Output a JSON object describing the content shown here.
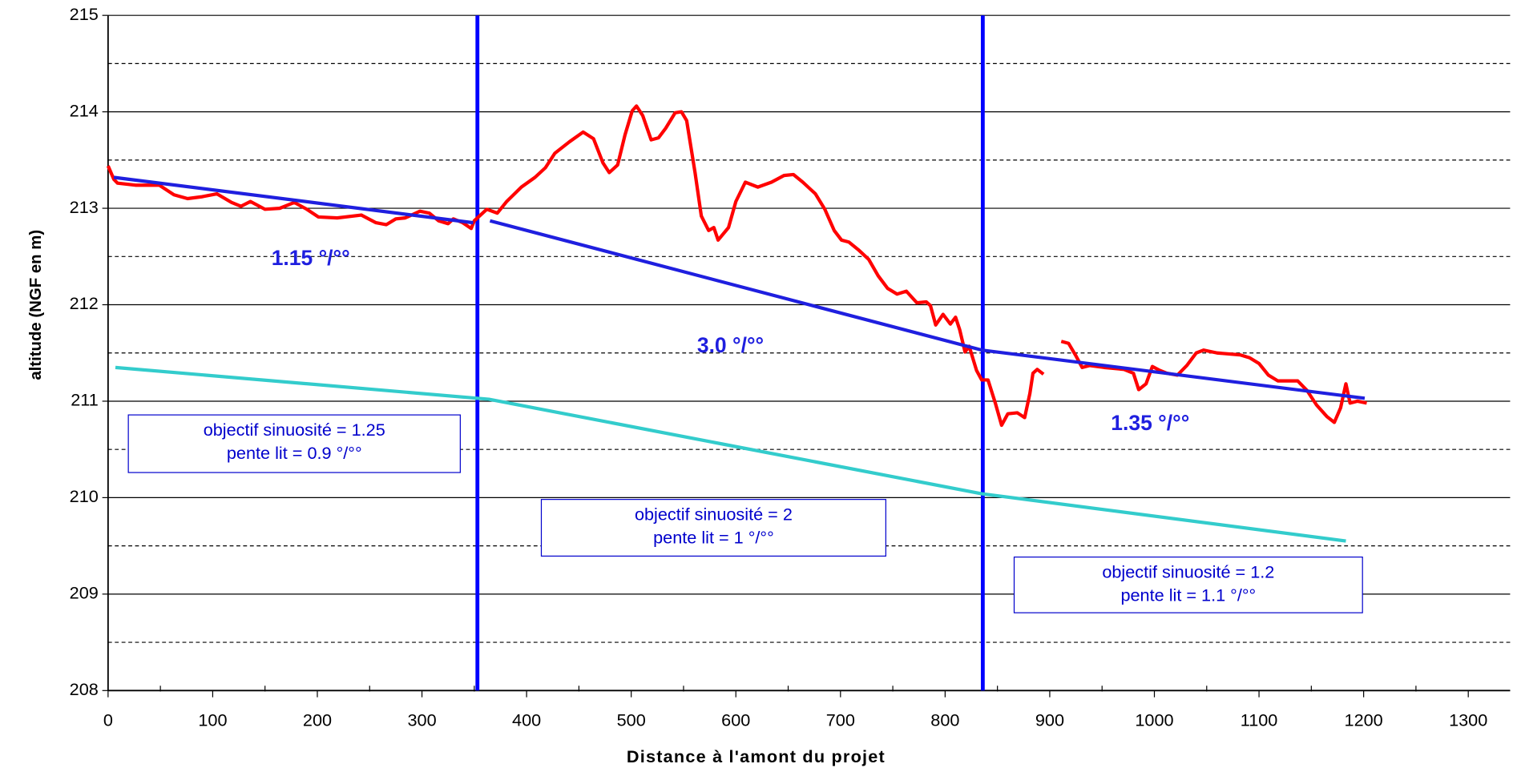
{
  "chart_data": {
    "type": "line",
    "xlabel": "Distance à l'amont du projet",
    "ylabel": "altitude (NGF en m)",
    "xlim": [
      0,
      1340
    ],
    "ylim": [
      208,
      215
    ],
    "xticks": [
      0,
      100,
      200,
      300,
      400,
      500,
      600,
      700,
      800,
      900,
      1000,
      1100,
      1200,
      1300
    ],
    "xminorticks": [
      50,
      150,
      250,
      350,
      450,
      550,
      650,
      750,
      850,
      950,
      1050,
      1150,
      1250
    ],
    "yticks": [
      208,
      209,
      210,
      211,
      212,
      213,
      214,
      215
    ],
    "yminorgrid": [
      208.5,
      209.5,
      210.5,
      211.5,
      212.5,
      213.5,
      214.5
    ],
    "grid": true,
    "vlines": {
      "color": "#0000ff",
      "values": [
        353,
        836
      ]
    },
    "series": [
      {
        "color": "#ff0000",
        "x": [
          0,
          5.5,
          9,
          26,
          49,
          63,
          76,
          90,
          104,
          118,
          127,
          136,
          150,
          164,
          178,
          190,
          201,
          219,
          242,
          256,
          266,
          275,
          284,
          298,
          307,
          316,
          325,
          330,
          339,
          347,
          350,
          362,
          372,
          381,
          395,
          408,
          418,
          427,
          441,
          454,
          464,
          473,
          479,
          487,
          494,
          501,
          505,
          511,
          519,
          526,
          533,
          542,
          548,
          553,
          561,
          567,
          574,
          579,
          583,
          593,
          600,
          609,
          621,
          634,
          646,
          655,
          664,
          676,
          685,
          694,
          701,
          708,
          717,
          727,
          736,
          745,
          754,
          763,
          773,
          782,
          786,
          791,
          798,
          805,
          810,
          814,
          819,
          823,
          830,
          835,
          841,
          848,
          854,
          860,
          869,
          876,
          881,
          884,
          888,
          894,
          900,
          911,
          918,
          925,
          931,
          938,
          952,
          971,
          980,
          985,
          992,
          998,
          1005,
          1012,
          1022,
          1031,
          1040,
          1047,
          1060,
          1082,
          1091,
          1100,
          1109,
          1118,
          1137,
          1146,
          1155,
          1165,
          1172,
          1178,
          1183,
          1187,
          1194,
          1203
        ],
        "values": [
          213.44,
          213.3,
          213.26,
          213.24,
          213.24,
          213.14,
          213.1,
          213.12,
          213.15,
          213.06,
          213.02,
          213.07,
          212.99,
          213.0,
          213.06,
          212.99,
          212.91,
          212.9,
          212.93,
          212.85,
          212.83,
          212.89,
          212.9,
          212.97,
          212.95,
          212.87,
          212.84,
          212.89,
          212.85,
          212.79,
          212.87,
          212.99,
          212.95,
          213.07,
          213.22,
          213.32,
          213.42,
          213.57,
          213.69,
          213.79,
          213.72,
          213.47,
          213.37,
          213.45,
          213.76,
          214.01,
          214.06,
          213.96,
          213.71,
          213.73,
          213.83,
          213.99,
          214.0,
          213.91,
          213.37,
          212.92,
          212.77,
          212.8,
          212.67,
          212.8,
          213.07,
          213.27,
          213.22,
          213.27,
          213.34,
          213.35,
          213.27,
          213.15,
          212.99,
          212.77,
          212.67,
          212.65,
          212.57,
          212.47,
          212.3,
          212.17,
          212.11,
          212.14,
          212.02,
          212.03,
          211.99,
          211.79,
          211.9,
          211.8,
          211.87,
          211.74,
          211.51,
          211.57,
          211.32,
          211.22,
          211.22,
          210.98,
          210.75,
          210.87,
          210.88,
          210.83,
          211.08,
          211.29,
          211.33,
          211.28,
          null,
          211.62,
          211.6,
          211.47,
          211.35,
          211.37,
          211.35,
          211.33,
          211.29,
          211.12,
          211.18,
          211.36,
          211.32,
          211.29,
          211.27,
          211.37,
          211.5,
          211.53,
          211.5,
          211.48,
          211.45,
          211.39,
          211.27,
          211.21,
          211.21,
          211.11,
          210.96,
          210.84,
          210.78,
          210.93,
          211.18,
          210.98,
          211.0,
          210.98
        ]
      },
      {
        "color": "#1f1fdf",
        "x": [
          5.5,
          349
        ],
        "values": [
          213.32,
          212.85
        ]
      },
      {
        "color": "#1f1fdf",
        "x": [
          365,
          835
        ],
        "values": [
          212.87,
          211.53
        ]
      },
      {
        "color": "#1f1fdf",
        "x": [
          835,
          1201
        ],
        "values": [
          211.53,
          211.03
        ]
      },
      {
        "color": "#33cccc",
        "x": [
          7,
          364,
          835,
          1183
        ],
        "values": [
          211.35,
          211.02,
          210.04,
          209.55
        ]
      }
    ],
    "annotations": [
      "1.15 °/°°",
      "3.0 °/°°",
      "1.35 °/°°"
    ],
    "boxes": [
      {
        "lines": [
          "objectif sinuosité = 1.25",
          "pente lit = 0.9 °/°°"
        ]
      },
      {
        "lines": [
          "objectif sinuosité = 2",
          "pente lit = 1 °/°°"
        ]
      },
      {
        "lines": [
          "objectif sinuosité = 1.2",
          "pente lit = 1.1 °/°°"
        ]
      }
    ]
  }
}
